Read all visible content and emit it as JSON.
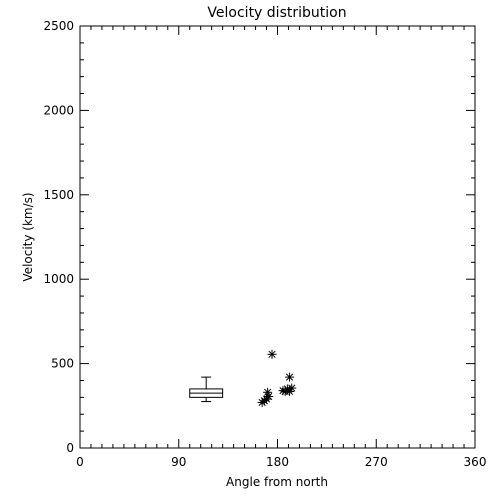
{
  "chart_data": {
    "type": "scatter",
    "title": "Velocity distribution",
    "xlabel": "Angle from north",
    "ylabel": "Velocity (km/s)",
    "xlim": [
      0,
      360
    ],
    "ylim": [
      0,
      2500
    ],
    "xticks": [
      0,
      90,
      180,
      270,
      360
    ],
    "yticks": [
      0,
      500,
      1000,
      1500,
      2000,
      2500
    ],
    "x_minor_step": 10,
    "y_minor_step": 100,
    "marker": "asterisk",
    "grid": false,
    "boxplot": {
      "x_range": [
        100,
        130
      ],
      "whisker_low": 275,
      "q1": 300,
      "median": 325,
      "q3": 350,
      "whisker_high": 420
    },
    "points": [
      {
        "x": 175,
        "y": 555
      },
      {
        "x": 191,
        "y": 420
      },
      {
        "x": 166,
        "y": 270
      },
      {
        "x": 168,
        "y": 280
      },
      {
        "x": 170,
        "y": 290
      },
      {
        "x": 171,
        "y": 330
      },
      {
        "x": 172,
        "y": 305
      },
      {
        "x": 185,
        "y": 340
      },
      {
        "x": 187,
        "y": 335
      },
      {
        "x": 189,
        "y": 350
      },
      {
        "x": 191,
        "y": 335
      },
      {
        "x": 193,
        "y": 355
      }
    ]
  }
}
